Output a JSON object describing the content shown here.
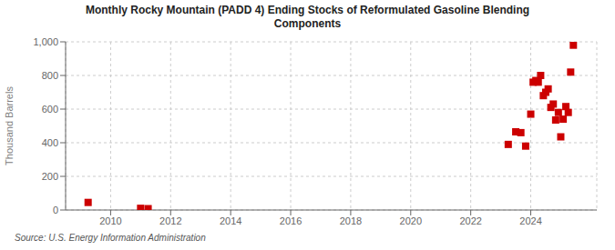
{
  "chart_data": {
    "type": "scatter",
    "title": "Monthly Rocky Mountain (PADD 4) Ending Stocks of Reformulated Gasoline Blending\nComponents",
    "ylabel": "Thousand Barrels",
    "annotations": [
      "Source: U.S. Energy Information Administration"
    ],
    "color": "#cc0000",
    "marker": "square",
    "grid": true,
    "xlim": [
      2008.5,
      2026.2
    ],
    "ylim": [
      0,
      1000
    ],
    "xticks": [
      2010,
      2012,
      2014,
      2016,
      2018,
      2020,
      2022,
      2024
    ],
    "yticks": [
      0,
      200,
      400,
      600,
      800,
      {
        "value": 1000,
        "label": "1,000"
      }
    ],
    "x": [
      2009.25,
      2011.0,
      2011.25,
      2023.25,
      2023.5,
      2023.67,
      2023.83,
      2024.0,
      2024.08,
      2024.17,
      2024.25,
      2024.33,
      2024.42,
      2024.5,
      2024.58,
      2024.67,
      2024.75,
      2024.83,
      2024.92,
      2025.0,
      2025.08,
      2025.17,
      2025.25,
      2025.33,
      2025.42
    ],
    "values": [
      45,
      10,
      8,
      390,
      465,
      460,
      380,
      570,
      760,
      770,
      760,
      800,
      680,
      700,
      720,
      610,
      630,
      535,
      580,
      435,
      540,
      615,
      580,
      820,
      980
    ]
  }
}
